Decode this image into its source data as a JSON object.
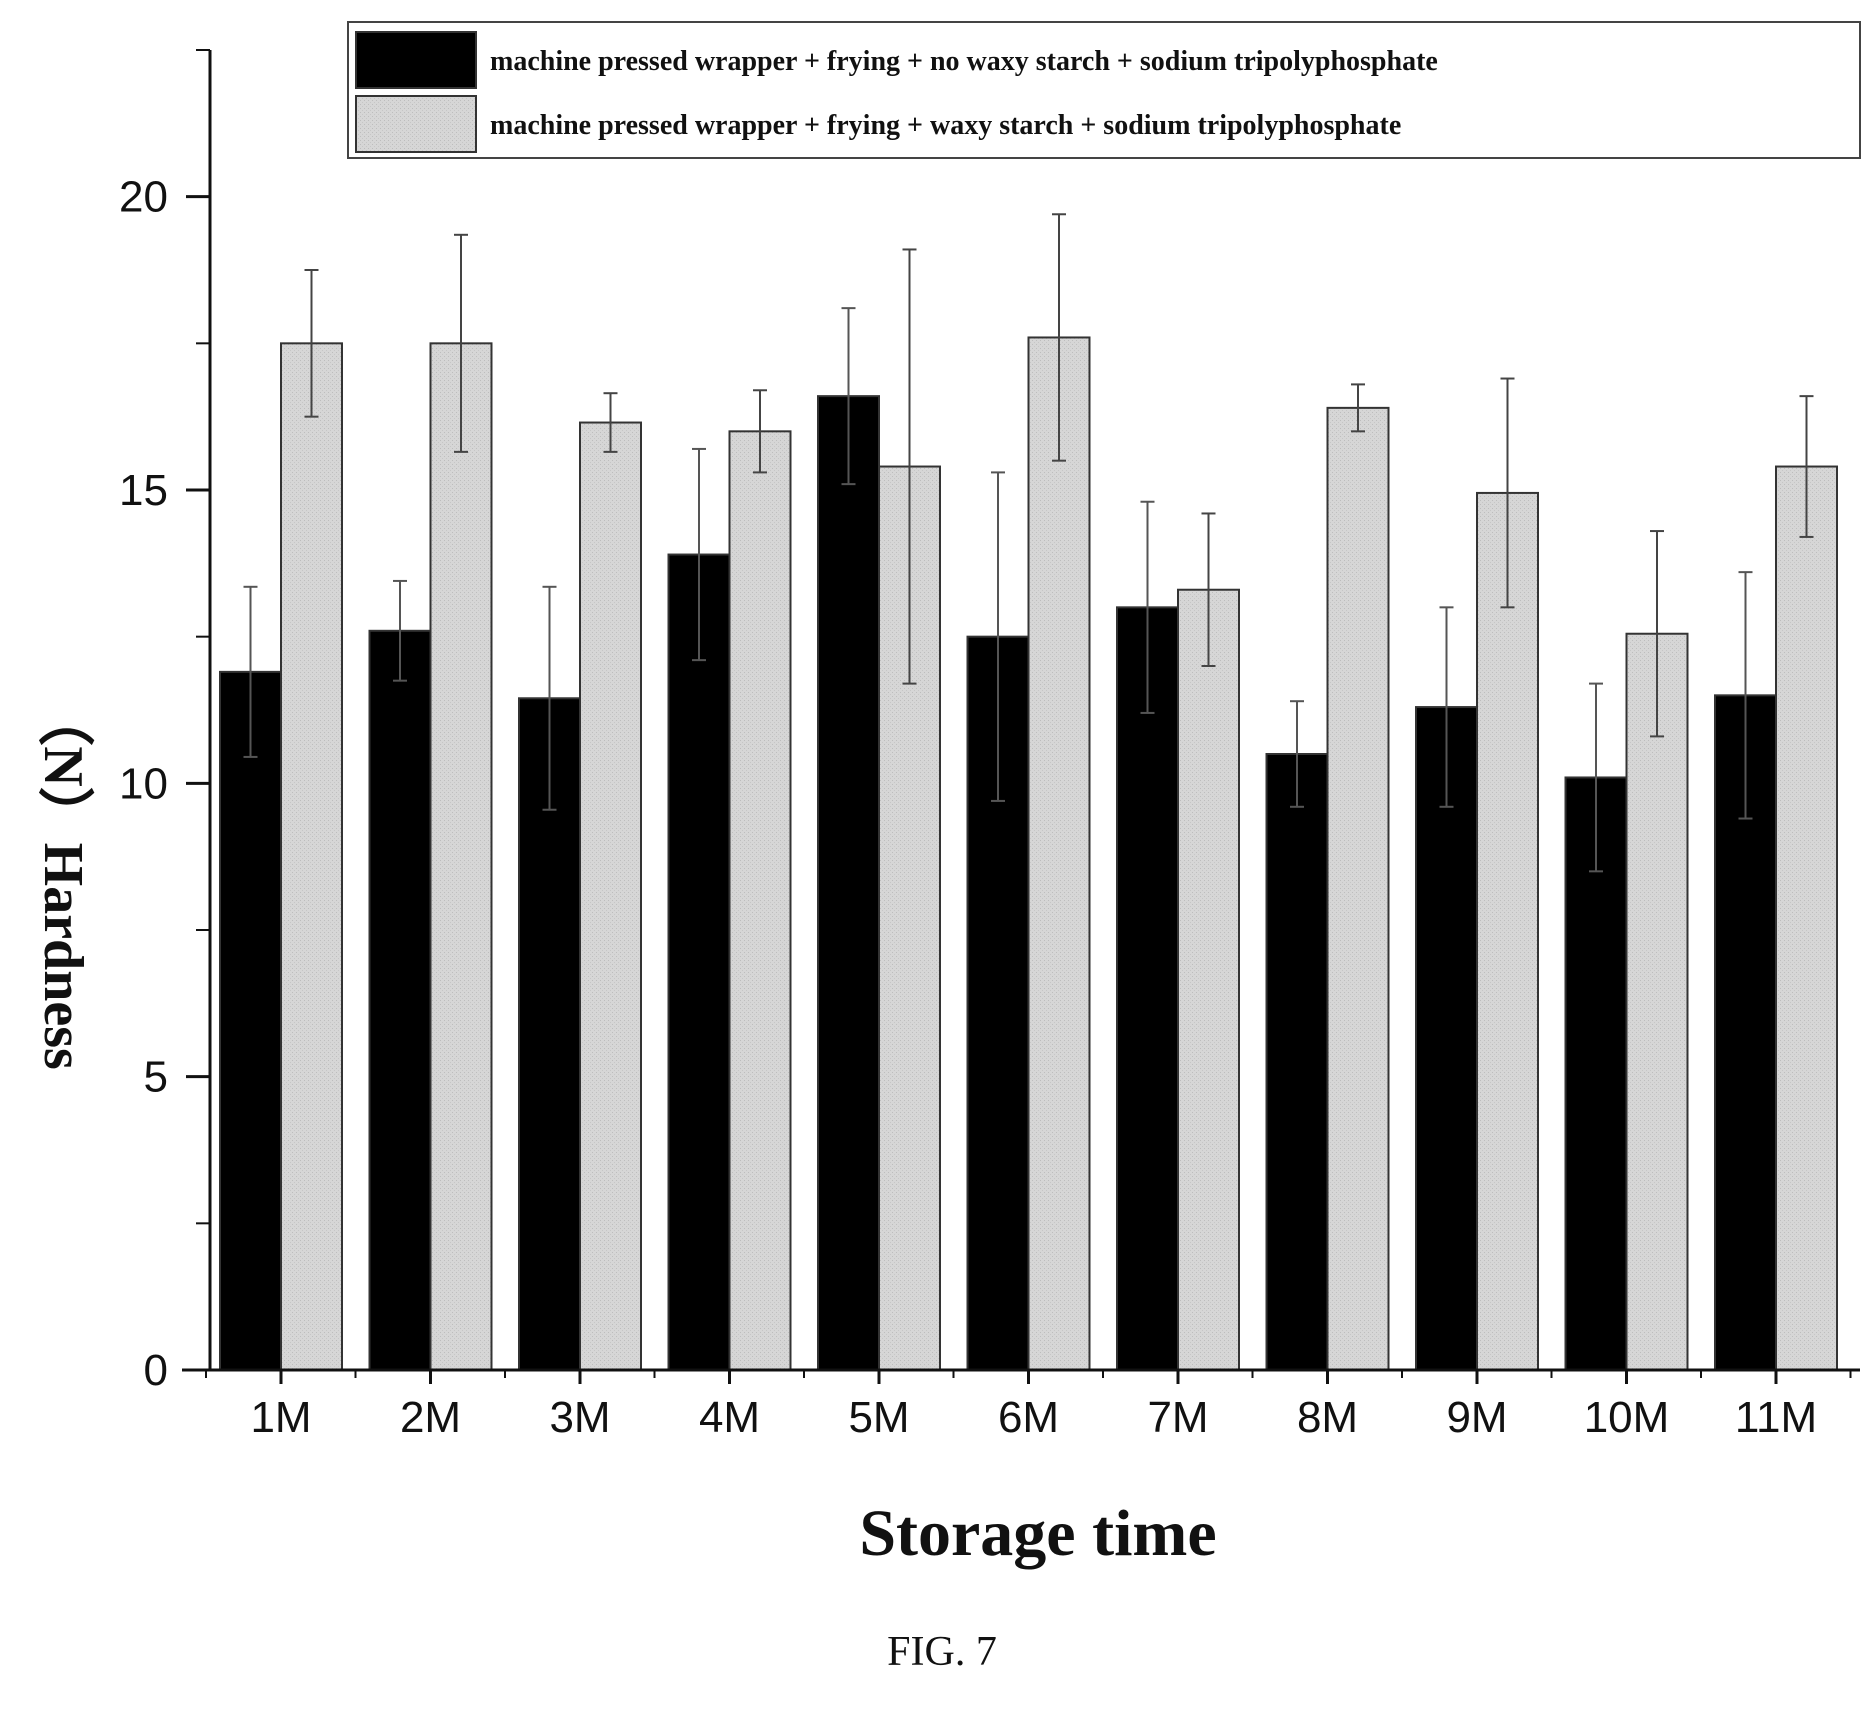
{
  "chart_data": {
    "type": "bar",
    "title": "",
    "xlabel": "Storage time",
    "ylabel": "（N）Hardness",
    "categories": [
      "1M",
      "2M",
      "3M",
      "4M",
      "5M",
      "6M",
      "7M",
      "8M",
      "9M",
      "10M",
      "11M"
    ],
    "ylim": [
      0,
      22.5
    ],
    "yticks": [
      0,
      5,
      10,
      15,
      20
    ],
    "legend_position": "top-right",
    "series": [
      {
        "name": "machine pressed wrapper + frying + no waxy starch + sodium tripolyphosphate",
        "color": "#000000",
        "values": [
          11.9,
          12.6,
          11.45,
          13.9,
          16.6,
          12.5,
          13.0,
          10.5,
          11.3,
          10.1,
          11.5
        ],
        "errors": [
          1.45,
          0.85,
          1.9,
          1.8,
          1.5,
          2.8,
          1.8,
          0.9,
          1.7,
          1.6,
          2.1
        ]
      },
      {
        "name": "machine pressed wrapper + frying + waxy starch + sodium tripolyphosphate",
        "color": "#d6d6d6",
        "values": [
          17.5,
          17.5,
          16.15,
          16.0,
          15.4,
          17.6,
          13.3,
          16.4,
          14.95,
          12.55,
          15.4
        ],
        "errors": [
          1.25,
          1.85,
          0.5,
          0.7,
          3.7,
          2.1,
          1.3,
          0.4,
          1.95,
          1.75,
          1.2
        ]
      }
    ]
  },
  "figure_caption": "FIG. 7"
}
